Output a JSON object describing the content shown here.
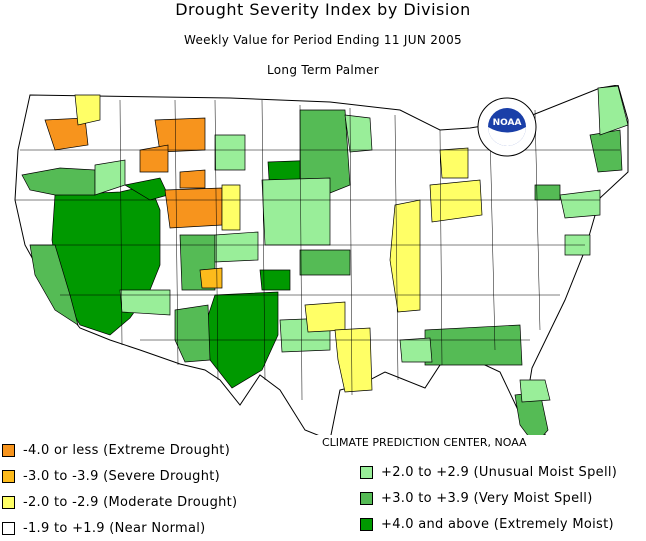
{
  "header": {
    "title": "Drought Severity Index by Division",
    "subtitle": "Weekly Value for Period Ending 11 JUN 2005",
    "index_name": "Long Term Palmer"
  },
  "credit": "CLIMATE PREDICTION CENTER, NOAA",
  "logo": {
    "text": "NOAA",
    "icon": "noaa-logo-icon"
  },
  "colors": {
    "extreme_drought": "#f7941d",
    "severe_drought": "#fdbb1c",
    "moderate_drought": "#ffff66",
    "near_normal": "#ffffff",
    "unusual_moist": "#99ee99",
    "very_moist": "#55bb55",
    "extremely_moist": "#009900"
  },
  "legend": {
    "left": [
      {
        "label": "-4.0 or less (Extreme Drought)",
        "color": "#f7941d"
      },
      {
        "label": "-3.0 to -3.9 (Severe Drought)",
        "color": "#fdbb1c"
      },
      {
        "label": "-2.0 to -2.9 (Moderate Drought)",
        "color": "#ffff66"
      },
      {
        "label": "-1.9 to +1.9 (Near Normal)",
        "color": "#ffffff"
      }
    ],
    "right": [
      {
        "label": "+2.0 to +2.9 (Unusual Moist Spell)",
        "color": "#99ee99"
      },
      {
        "label": "+3.0 to +3.9 (Very Moist Spell)",
        "color": "#55bb55"
      },
      {
        "label": "+4.0 and above (Extremely Moist)",
        "color": "#009900"
      }
    ]
  }
}
